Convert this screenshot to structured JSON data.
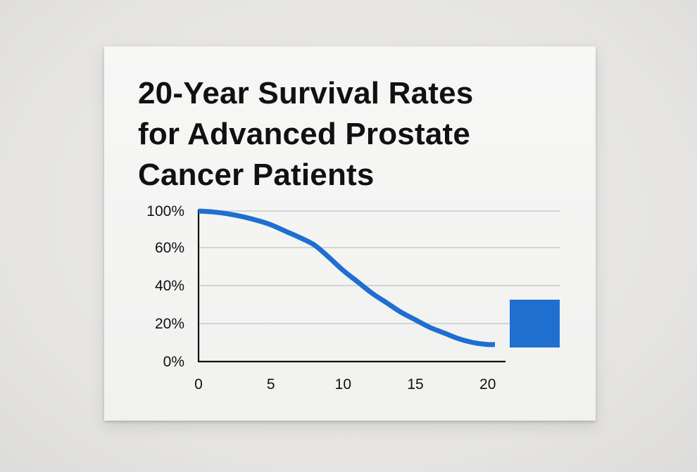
{
  "title_lines": [
    "20-Year Survival Rates",
    "for Advanced Prostate",
    "Cancer Patients"
  ],
  "chart_data": {
    "type": "line",
    "title": "20-Year Survival Rates for Advanced Prostate Cancer Patients",
    "xlabel": "",
    "ylabel": "",
    "xlim": [
      0,
      20.5
    ],
    "ylim": [
      0,
      100
    ],
    "x_ticks": [
      0,
      5,
      10,
      15,
      20
    ],
    "x_tick_labels": [
      "0",
      "5",
      "10",
      "15",
      "20"
    ],
    "y_ticks": [
      0,
      20,
      40,
      60,
      100
    ],
    "y_tick_labels": [
      "0%",
      "20%",
      "40%",
      "60%",
      "100%"
    ],
    "grid": true,
    "series": [
      {
        "color": "#1f6fd1",
        "x": [
          0,
          1,
          2,
          3,
          4,
          5,
          6,
          7,
          8,
          9,
          10,
          11,
          12,
          13,
          14,
          15,
          16,
          17,
          18,
          19,
          20,
          20.5
        ],
        "y": [
          100,
          99,
          97,
          94,
          90,
          85,
          78,
          71,
          63,
          55,
          48,
          42,
          36,
          31,
          26,
          22,
          18,
          15,
          12,
          10,
          9,
          9
        ]
      }
    ],
    "legend": {
      "position": "right",
      "swatch_color": "#1f6fd1",
      "label": ""
    }
  }
}
